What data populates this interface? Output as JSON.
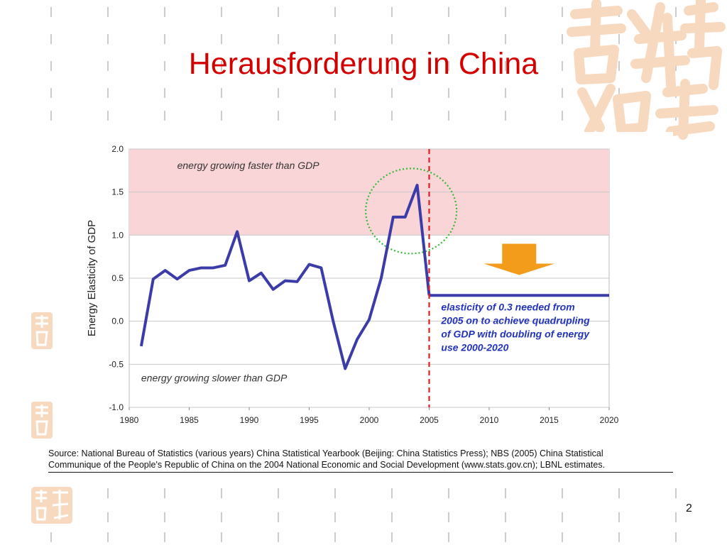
{
  "slide": {
    "title": "Herausforderung in China",
    "page_number": "2",
    "source_line1": "Source: National Bureau of Statistics (various years) China Statistical Yearbook (Beijing: China Statistics Press); NBS (2005) China Statistical",
    "source_line2": "Communique of the People's Republic of China on the 2004 National Economic and Social Development (www.stats.gov.cn); LBNL estimates.",
    "accent_color": "#d40000",
    "decoration_color": "#f6d9bf"
  },
  "chart_data": {
    "type": "line",
    "ylabel": "Energy Elasticity of GDP",
    "xlim": [
      1980,
      2020
    ],
    "ylim": [
      -1.0,
      2.0
    ],
    "x_ticks": [
      "1980",
      "1985",
      "1990",
      "1995",
      "2000",
      "2005",
      "2010",
      "2015",
      "2020"
    ],
    "y_ticks": [
      "2.0",
      "1.5",
      "1.0",
      "0.5",
      "0.0",
      "-0.5",
      "-1.0"
    ],
    "grid": true,
    "shaded_region": {
      "y_from": 1.0,
      "y_to": 2.0,
      "color": "#f9d5d8"
    },
    "series": [
      {
        "color": "#3b3ca8",
        "x": [
          1981,
          1982,
          1983,
          1984,
          1985,
          1986,
          1987,
          1988,
          1989,
          1990,
          1991,
          1992,
          1993,
          1994,
          1995,
          1996,
          1997,
          1998,
          1999,
          2000,
          2001,
          2002,
          2003,
          2004,
          2005
        ],
        "y": [
          -0.29,
          0.49,
          0.59,
          0.49,
          0.59,
          0.62,
          0.62,
          0.65,
          1.04,
          0.47,
          0.56,
          0.37,
          0.47,
          0.46,
          0.66,
          0.62,
          0.0,
          -0.55,
          -0.21,
          0.02,
          0.5,
          1.21,
          1.21,
          1.58,
          0.3
        ]
      },
      {
        "color": "#3b3ca8",
        "x": [
          2005,
          2020
        ],
        "y": [
          0.3,
          0.3
        ]
      }
    ],
    "vertical_marker": {
      "x": 2005,
      "color": "#e02020",
      "style": "dashed"
    },
    "highlight_circle": {
      "cx": 2003.5,
      "cy": 1.28,
      "color": "#33bb33"
    },
    "annotations": {
      "top_region": "energy growing faster than GDP",
      "bottom_region": "energy growing slower than GDP",
      "target_lines": [
        "elasticity of 0.3 needed from",
        "2005 on to achieve quadrupling",
        "of GDP with doubling of energy",
        "use 2000-2020"
      ]
    },
    "arrow_color": "#f39b1a"
  }
}
